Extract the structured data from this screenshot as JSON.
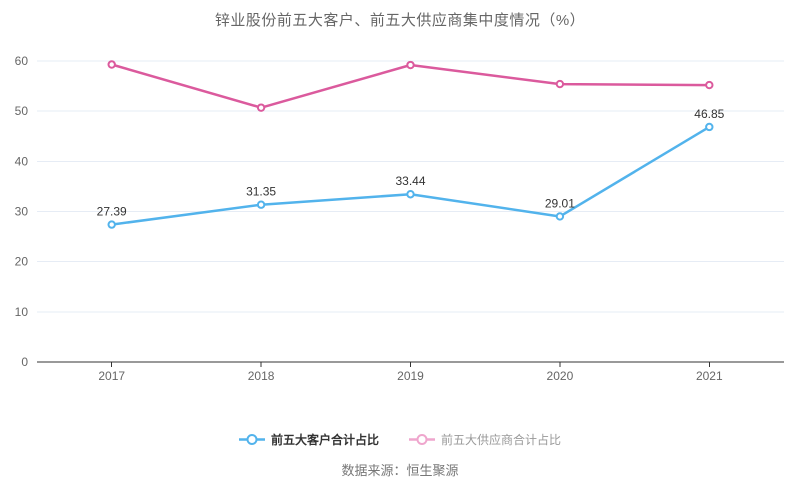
{
  "title": "锌业股份前五大客户、前五大供应商集中度情况（%）",
  "source": "数据来源：恒生聚源",
  "colors": {
    "background": "#ffffff",
    "customer_series": "#52b3ec",
    "supplier_series": "#db5a9d",
    "grid_line": "#e6ecf5",
    "axis_line": "#333333",
    "axis_tick_label": "#666666",
    "title_text": "#666666",
    "data_label_text": "#333333",
    "legend_label_primary": "#333333",
    "legend_label_muted": "#999999",
    "legend_marker_supplier": "#efa6cd",
    "source_text": "#777777"
  },
  "chart_data": {
    "type": "line",
    "title": "锌业股份前五大客户、前五大供应商集中度情况（%）",
    "categories": [
      "2017",
      "2018",
      "2019",
      "2020",
      "2021"
    ],
    "series": [
      {
        "name": "前五大客户合计占比",
        "color": "#52b3ec",
        "values": [
          27.39,
          31.35,
          33.44,
          29.01,
          46.85
        ],
        "data_labels": [
          "27.39",
          "31.35",
          "33.44",
          "29.01",
          "46.85"
        ],
        "show_labels": true
      },
      {
        "name": "前五大供应商合计占比",
        "color": "#db5a9d",
        "values": [
          59.3,
          50.7,
          59.2,
          55.4,
          55.2
        ],
        "show_labels": false
      }
    ],
    "xlabel": "",
    "ylabel": "",
    "ylim": [
      0,
      60
    ],
    "yticks": [
      0,
      10,
      20,
      30,
      40,
      50,
      60
    ],
    "grid": true,
    "legend_position": "bottom"
  },
  "legend": {
    "items": [
      {
        "label": "前五大客户合计占比",
        "marker_color": "#52b3ec",
        "label_color": "#333333"
      },
      {
        "label": "前五大供应商合计占比",
        "marker_color": "#efa6cd",
        "label_color": "#999999"
      }
    ]
  }
}
